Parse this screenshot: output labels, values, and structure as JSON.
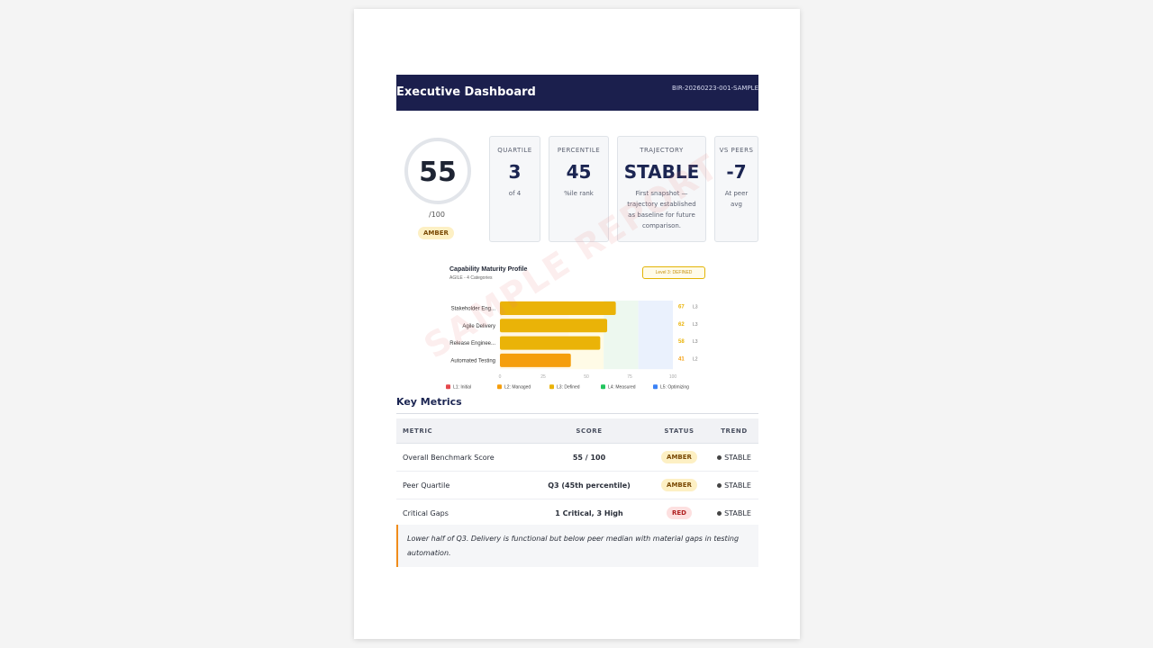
{
  "header": {
    "title": "Executive Dashboard",
    "report_id": "BIR-20260223-001-SAMPLE"
  },
  "watermark": "SAMPLE REPORT",
  "score": {
    "value": "55",
    "max": "/100",
    "status": "AMBER"
  },
  "cards": [
    {
      "label": "QUARTILE",
      "value": "3",
      "sub": "of 4"
    },
    {
      "label": "PERCENTILE",
      "value": "45",
      "sub": "%ile rank"
    },
    {
      "label": "TRAJECTORY",
      "value": "STABLE",
      "sub": "First snapshot — trajectory established as baseline for future comparison."
    },
    {
      "label": "VS PEERS",
      "value": "-7",
      "sub": "At peer avg"
    }
  ],
  "chart_data": {
    "type": "bar",
    "orientation": "horizontal",
    "title": "Capability Maturity Profile",
    "subtitle": "AGILE - 4 Categories",
    "level_badge": "Level 3: DEFINED",
    "categories": [
      "Stakeholder Eng...",
      "Agile Delivery",
      "Release Enginee...",
      "Automated Testing"
    ],
    "values": [
      67,
      62,
      58,
      41
    ],
    "levels": [
      "L3",
      "L3",
      "L3",
      "L2"
    ],
    "xlim": [
      0,
      100
    ],
    "xticks": [
      0,
      25,
      50,
      75,
      100
    ],
    "legend": [
      "L1: Initial",
      "L2: Managed",
      "L3: Defined",
      "L4: Measured",
      "L5: Optimizing"
    ],
    "legend_colors": [
      "#e5484d",
      "#f59e0b",
      "#eab308",
      "#22c55e",
      "#3b82f6"
    ],
    "bar_colors": [
      "#eab308",
      "#eab308",
      "#eab308",
      "#f59e0b"
    ],
    "band_colors": [
      "#fff7e6",
      "#fffbe6",
      "#edf8ef",
      "#eaf1fd"
    ],
    "legend_placement": "bottom"
  },
  "metrics": {
    "title": "Key Metrics",
    "headers": {
      "metric": "METRIC",
      "score": "SCORE",
      "status": "STATUS",
      "trend": "TREND"
    },
    "rows": [
      {
        "metric": "Overall Benchmark Score",
        "score": "55 / 100",
        "status": "AMBER",
        "trend": "STABLE"
      },
      {
        "metric": "Peer Quartile",
        "score": "Q3 (45th percentile)",
        "status": "AMBER",
        "trend": "STABLE"
      },
      {
        "metric": "Critical Gaps",
        "score": "1 Critical, 3 High",
        "status": "RED",
        "trend": "STABLE"
      }
    ]
  },
  "callout": "Lower half of Q3. Delivery is functional but below peer median with material gaps in testing automation."
}
